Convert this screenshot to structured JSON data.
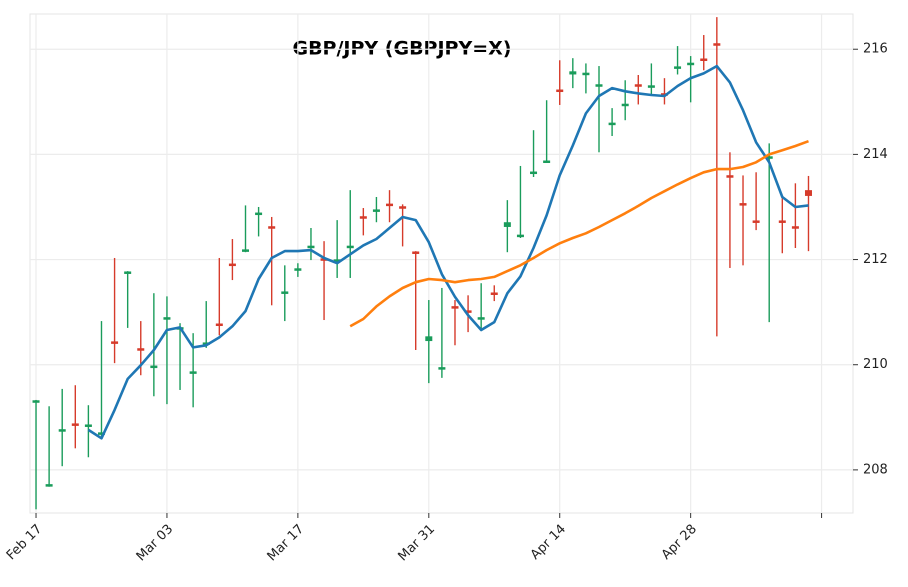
{
  "chart_data": {
    "type": "candlestick",
    "title": "GBP/JPY (GBPJPY=X)",
    "categories": [
      "Feb 17",
      null,
      null,
      null,
      null,
      null,
      null,
      null,
      null,
      null,
      "Mar 03",
      null,
      null,
      null,
      null,
      null,
      null,
      null,
      null,
      null,
      "Mar 17",
      null,
      null,
      null,
      null,
      null,
      null,
      null,
      null,
      null,
      "Mar 31",
      null,
      null,
      null,
      null,
      null,
      null,
      null,
      null,
      null,
      "Apr 14",
      null,
      null,
      null,
      null,
      null,
      null,
      null,
      null,
      null,
      "Apr 28",
      null,
      null,
      null,
      null,
      null,
      null,
      null,
      null,
      null
    ],
    "open": [
      209.29,
      207.69,
      208.74,
      208.87,
      208.83,
      208.68,
      210.43,
      211.74,
      210.3,
      209.95,
      210.87,
      210.68,
      209.84,
      210.39,
      210.77,
      211.91,
      212.16,
      212.86,
      212.62,
      211.36,
      211.8,
      212.23,
      212.01,
      211.97,
      212.23,
      212.81,
      212.92,
      213.05,
      213.0,
      212.14,
      210.45,
      209.92,
      211.1,
      211.02,
      210.87,
      211.36,
      212.62,
      212.44,
      213.64,
      213.85,
      215.22,
      215.52,
      215.52,
      215.3,
      214.57,
      214.93,
      215.32,
      215.28,
      215.15,
      215.64,
      215.71,
      215.81,
      216.1,
      213.59,
      213.07,
      212.73,
      213.93,
      212.73,
      212.62,
      213.32
    ],
    "high": [
      209.33,
      209.21,
      209.54,
      209.61,
      209.23,
      210.83,
      212.03,
      211.78,
      210.83,
      211.36,
      211.3,
      210.79,
      210.6,
      211.21,
      212.03,
      212.39,
      213.03,
      213.0,
      212.81,
      211.89,
      211.93,
      212.6,
      212.35,
      212.75,
      213.32,
      212.98,
      213.19,
      213.32,
      213.05,
      212.16,
      211.23,
      211.46,
      211.23,
      211.32,
      211.55,
      211.51,
      213.13,
      213.78,
      214.46,
      215.03,
      215.79,
      215.83,
      215.73,
      215.68,
      214.88,
      215.41,
      215.51,
      215.73,
      215.45,
      216.06,
      215.87,
      216.27,
      216.61,
      214.04,
      213.6,
      213.66,
      214.21,
      213.17,
      213.45,
      213.59
    ],
    "low": [
      207.25,
      207.68,
      208.07,
      208.41,
      208.24,
      208.62,
      210.03,
      210.7,
      209.8,
      209.4,
      209.25,
      209.52,
      209.19,
      210.32,
      210.56,
      211.61,
      212.14,
      212.44,
      211.13,
      210.83,
      211.67,
      211.99,
      210.85,
      211.65,
      211.65,
      212.46,
      212.71,
      212.71,
      212.25,
      210.28,
      209.65,
      209.75,
      210.37,
      210.62,
      210.64,
      211.21,
      212.14,
      212.41,
      213.57,
      213.85,
      214.94,
      215.26,
      215.16,
      214.04,
      214.35,
      214.65,
      214.95,
      215.13,
      214.95,
      215.52,
      214.99,
      215.6,
      210.54,
      211.84,
      211.89,
      212.56,
      210.81,
      212.12,
      212.22,
      212.16
    ],
    "close": [
      209.31,
      207.72,
      208.76,
      208.85,
      208.85,
      208.7,
      210.41,
      211.76,
      210.28,
      209.97,
      210.89,
      210.7,
      209.86,
      210.41,
      210.75,
      211.89,
      212.18,
      212.88,
      212.6,
      211.38,
      211.82,
      212.25,
      211.99,
      211.99,
      212.25,
      212.79,
      212.94,
      213.03,
      212.98,
      212.12,
      210.54,
      209.94,
      211.08,
      211.0,
      210.89,
      211.34,
      212.71,
      212.46,
      213.66,
      213.87,
      215.2,
      215.58,
      215.54,
      215.32,
      214.59,
      214.95,
      215.3,
      215.3,
      215.13,
      215.66,
      215.73,
      215.79,
      216.08,
      213.57,
      213.03,
      212.71,
      213.95,
      212.71,
      212.6,
      213.21
    ],
    "up_color": "#1a9c5b",
    "down_color": "#d63b2b",
    "moving_averages": [
      {
        "color": "#1f77b4",
        "values": [
          null,
          null,
          null,
          null,
          208.76,
          208.6,
          209.14,
          209.73,
          209.99,
          210.28,
          210.66,
          210.71,
          210.33,
          210.37,
          210.52,
          210.73,
          211.02,
          211.63,
          212.03,
          212.16,
          212.16,
          212.18,
          212.03,
          211.93,
          212.1,
          212.27,
          212.39,
          212.6,
          212.81,
          212.75,
          212.33,
          211.72,
          211.29,
          210.94,
          210.66,
          210.81,
          211.36,
          211.68,
          212.22,
          212.84,
          213.6,
          214.17,
          214.78,
          215.11,
          215.26,
          215.2,
          215.16,
          215.13,
          215.11,
          215.3,
          215.45,
          215.54,
          215.68,
          215.37,
          214.84,
          214.23,
          213.85,
          213.19,
          213.0,
          213.03
        ]
      },
      {
        "color": "#ff7f0e",
        "values": [
          null,
          null,
          null,
          null,
          null,
          null,
          null,
          null,
          null,
          null,
          null,
          null,
          null,
          null,
          null,
          null,
          null,
          null,
          null,
          null,
          null,
          null,
          null,
          null,
          210.73,
          210.87,
          211.11,
          211.3,
          211.46,
          211.57,
          211.63,
          211.61,
          211.57,
          211.61,
          211.63,
          211.67,
          211.78,
          211.89,
          212.03,
          212.18,
          212.31,
          212.41,
          212.5,
          212.62,
          212.75,
          212.88,
          213.02,
          213.17,
          213.3,
          213.43,
          213.55,
          213.66,
          213.72,
          213.72,
          213.76,
          213.85,
          214.0,
          214.08,
          214.16,
          214.25
        ]
      }
    ],
    "xlim": [
      -0.46,
      62.4
    ],
    "xticks": [
      0,
      10,
      20,
      30,
      40,
      50,
      60
    ],
    "ylim": [
      207.18,
      216.67
    ],
    "yticks": [
      208,
      210,
      212,
      214,
      216
    ],
    "grid": true
  }
}
